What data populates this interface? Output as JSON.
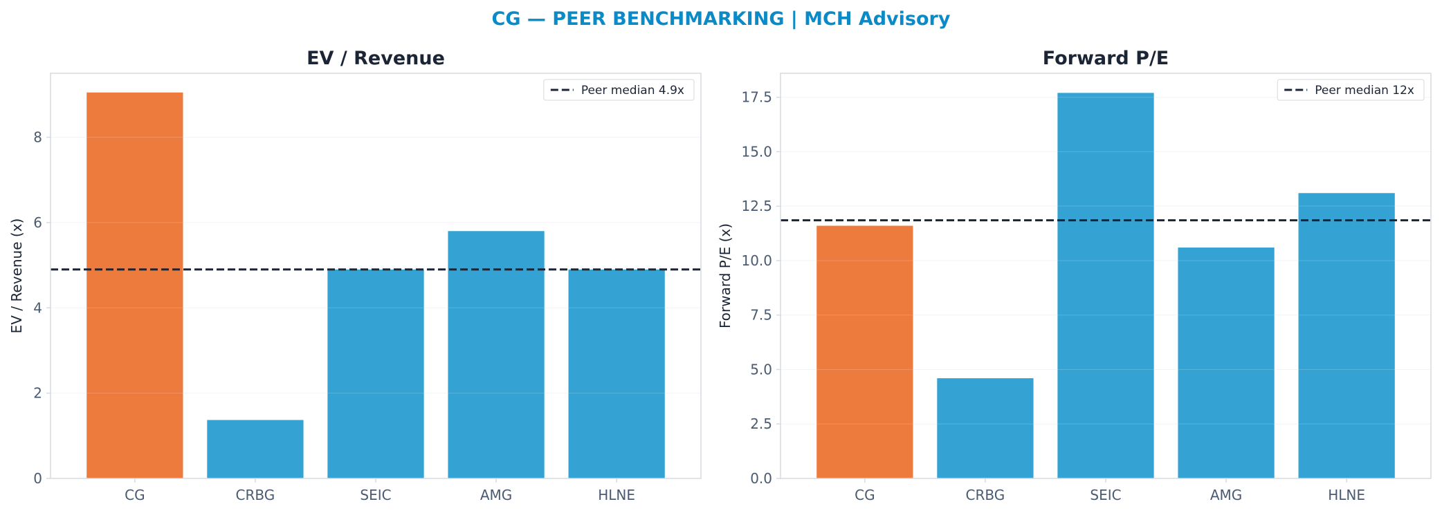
{
  "figure": {
    "suptitle": "CG — PEER BENCHMARKING | MCH Advisory"
  },
  "colors": {
    "title": "#0a8ac6",
    "highlight_bar": "#ed7b3e",
    "peer_bar": "#34a3d4",
    "median_line": "#1b2535",
    "axes_text": "#4a5a70",
    "heading_text": "#1b2535",
    "spine": "#d5dbe2",
    "grid": "#f0f2f4"
  },
  "chart_data": [
    {
      "type": "bar",
      "title": "EV / Revenue",
      "xlabel": "",
      "ylabel": "EV / Revenue (x)",
      "categories": [
        "CG",
        "CRBG",
        "SEIC",
        "AMG",
        "HLNE"
      ],
      "values": [
        9.05,
        1.37,
        4.9,
        5.8,
        4.9
      ],
      "highlight_category": "CG",
      "ylim": [
        0,
        9.5
      ],
      "yticks": [
        0,
        2,
        4,
        6,
        8
      ],
      "ytick_labels": [
        "0",
        "2",
        "4",
        "6",
        "8"
      ],
      "median": 4.9,
      "legend": [
        "Peer median 4.9x"
      ],
      "legend_position": "top-right",
      "grid": true
    },
    {
      "type": "bar",
      "title": "Forward P/E",
      "xlabel": "",
      "ylabel": "Forward P/E (x)",
      "categories": [
        "CG",
        "CRBG",
        "SEIC",
        "AMG",
        "HLNE"
      ],
      "values": [
        11.6,
        4.6,
        17.7,
        10.6,
        13.1
      ],
      "highlight_category": "CG",
      "ylim": [
        0,
        18.6
      ],
      "yticks": [
        0,
        2.5,
        5,
        7.5,
        10,
        12.5,
        15,
        17.5
      ],
      "ytick_labels": [
        "0.0",
        "2.5",
        "5.0",
        "7.5",
        "10.0",
        "12.5",
        "15.0",
        "17.5"
      ],
      "median": 11.85,
      "legend": [
        "Peer median 12x"
      ],
      "legend_position": "top-right",
      "grid": true
    }
  ]
}
